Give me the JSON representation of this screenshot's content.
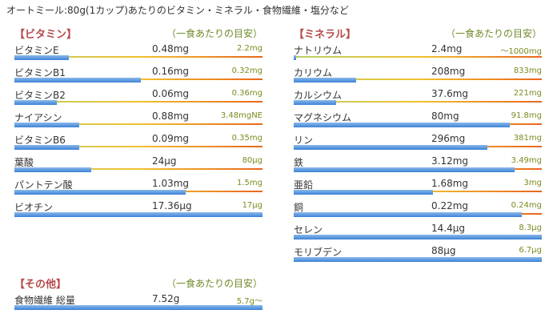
{
  "title": "オートミール:80g(1カップ)あたりのビタミン・ミネラル・食物繊維・塩分など",
  "sections": [
    {
      "title": "【ビタミン】",
      "note": "（一食あたりの目安）",
      "rows": [
        {
          "name": "ビタミンE",
          "amount": "0.48mg",
          "reference": "2.2mg",
          "percent": 22
        },
        {
          "name": "ビタミンB1",
          "amount": "0.16mg",
          "reference": "0.32mg",
          "percent": 51
        },
        {
          "name": "ビタミンB2",
          "amount": "0.06mg",
          "reference": "0.36mg",
          "percent": 17
        },
        {
          "name": "ナイアシン",
          "amount": "0.88mg",
          "reference": "3.48mgNE",
          "percent": 26
        },
        {
          "name": "ビタミンB6",
          "amount": "0.09mg",
          "reference": "0.35mg",
          "percent": 26
        },
        {
          "name": "葉酸",
          "amount": "24μg",
          "reference": "80μg",
          "percent": 31
        },
        {
          "name": "パントテン酸",
          "amount": "1.03mg",
          "reference": "1.5mg",
          "percent": 69
        },
        {
          "name": "ビオチン",
          "amount": "17.36μg",
          "reference": "17μg",
          "percent": 100
        }
      ]
    },
    {
      "title": "【ミネラル】",
      "note": "（一食あたりの目安）",
      "rows": [
        {
          "name": "ナトリウム",
          "amount": "2.4mg",
          "reference": "～1000mg",
          "percent": 1
        },
        {
          "name": "カリウム",
          "amount": "208mg",
          "reference": "833mg",
          "percent": 25
        },
        {
          "name": "カルシウム",
          "amount": "37.6mg",
          "reference": "221mg",
          "percent": 17
        },
        {
          "name": "マグネシウム",
          "amount": "80mg",
          "reference": "91.8mg",
          "percent": 87
        },
        {
          "name": "リン",
          "amount": "296mg",
          "reference": "381mg",
          "percent": 78
        },
        {
          "name": "鉄",
          "amount": "3.12mg",
          "reference": "3.49mg",
          "percent": 89
        },
        {
          "name": "亜鉛",
          "amount": "1.68mg",
          "reference": "3mg",
          "percent": 56
        },
        {
          "name": "銅",
          "amount": "0.22mg",
          "reference": "0.24mg",
          "percent": 92
        },
        {
          "name": "セレン",
          "amount": "14.4μg",
          "reference": "8.3μg",
          "percent": 100
        },
        {
          "name": "モリブデン",
          "amount": "88μg",
          "reference": "6.7μg",
          "percent": 100
        }
      ]
    },
    {
      "title": "【その他】",
      "note": "（一食あたりの目安）",
      "rows": [
        {
          "name": "食物繊維 総量",
          "amount": "7.52g",
          "reference": "5.7g～",
          "percent": 100
        }
      ]
    }
  ]
}
